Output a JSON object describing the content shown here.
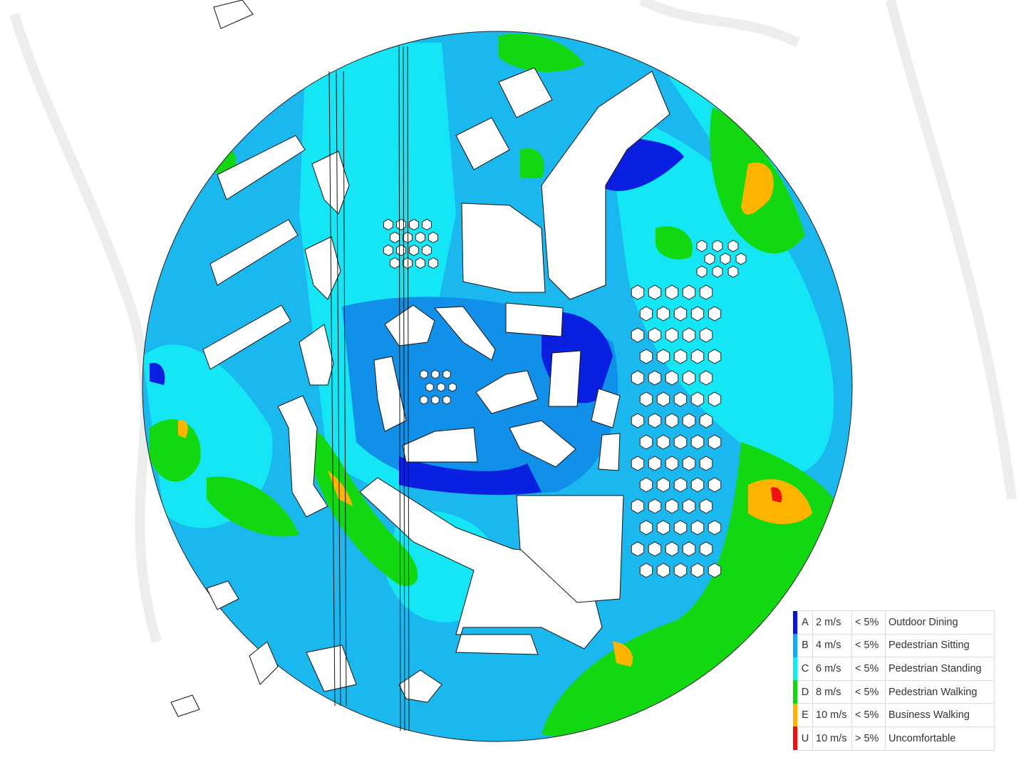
{
  "legend": {
    "rows": [
      {
        "grade": "A",
        "speed": "2 m/s",
        "exceedance": "< 5%",
        "activity": "Outdoor Dining",
        "color": "#0a14e6"
      },
      {
        "grade": "B",
        "speed": "4 m/s",
        "exceedance": "< 5%",
        "activity": "Pedestrian Sitting",
        "color": "#10aaf5"
      },
      {
        "grade": "C",
        "speed": "6 m/s",
        "exceedance": "< 5%",
        "activity": "Pedestrian Standing",
        "color": "#10eef5"
      },
      {
        "grade": "D",
        "speed": "8 m/s",
        "exceedance": "< 5%",
        "activity": "Pedestrian Walking",
        "color": "#12d812"
      },
      {
        "grade": "E",
        "speed": "10 m/s",
        "exceedance": "< 5%",
        "activity": "Business Walking",
        "color": "#ffb400"
      },
      {
        "grade": "U",
        "speed": "10 m/s",
        "exceedance": "> 5%",
        "activity": "Uncomfortable",
        "color": "#f01010"
      }
    ]
  },
  "map": {
    "base_color": "#18c8f0"
  }
}
